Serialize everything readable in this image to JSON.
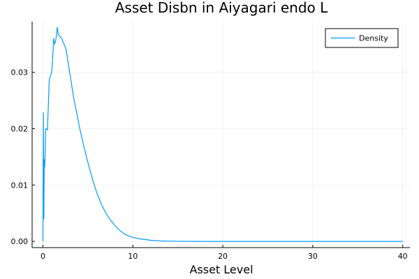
{
  "chart_data": {
    "type": "line",
    "title": "Asset Disbn in Aiyagari endo L",
    "xlabel": "Asset Level",
    "ylabel": "",
    "xlim": [
      -1.2,
      40.8
    ],
    "ylim": [
      -0.0011,
      0.039
    ],
    "xticks": [
      0,
      10,
      20,
      30,
      40
    ],
    "xtick_labels": [
      "0",
      "10",
      "20",
      "30",
      "40"
    ],
    "yticks": [
      0.0,
      0.01,
      0.02,
      0.03
    ],
    "ytick_labels": [
      "0.00",
      "0.01",
      "0.02",
      "0.03"
    ],
    "grid": true,
    "legend_position": "top-right",
    "series": [
      {
        "name": "Density",
        "color": "#009af9",
        "x": [
          0,
          0.05,
          0.1,
          0.15,
          0.2,
          0.25,
          0.3,
          0.35,
          0.4,
          0.5,
          0.6,
          0.7,
          0.8,
          0.9,
          1.0,
          1.1,
          1.2,
          1.3,
          1.4,
          1.5,
          1.6,
          1.7,
          1.8,
          1.9,
          2.0,
          2.1,
          2.2,
          2.3,
          2.4,
          2.5,
          2.6,
          2.8,
          3.0,
          3.2,
          3.4,
          3.6,
          3.8,
          4.0,
          4.5,
          5.0,
          5.5,
          6.0,
          6.5,
          7.0,
          7.5,
          8.0,
          8.5,
          9.0,
          9.5,
          10.0,
          11.0,
          12.0,
          13.0,
          14.0,
          15.0,
          16.0,
          18.0,
          20.0,
          25.0,
          30.0,
          35.0,
          40.0
        ],
        "y": [
          0.0,
          0.0228,
          0.004,
          0.0145,
          0.0132,
          0.0158,
          0.0198,
          0.02,
          0.0199,
          0.0198,
          0.024,
          0.0285,
          0.0292,
          0.0296,
          0.0305,
          0.033,
          0.036,
          0.035,
          0.0355,
          0.0365,
          0.038,
          0.0368,
          0.0365,
          0.0363,
          0.0362,
          0.036,
          0.0355,
          0.0352,
          0.0348,
          0.0344,
          0.0338,
          0.0318,
          0.0297,
          0.0277,
          0.0257,
          0.024,
          0.0225,
          0.0207,
          0.0172,
          0.014,
          0.0111,
          0.0086,
          0.0066,
          0.005,
          0.0038,
          0.0028,
          0.002,
          0.0014,
          0.001,
          0.0007,
          0.0004,
          0.0002,
          0.0001,
          5e-05,
          2e-05,
          1e-05,
          0.0,
          0.0,
          0.0,
          0.0,
          0.0,
          0.0
        ]
      }
    ]
  }
}
